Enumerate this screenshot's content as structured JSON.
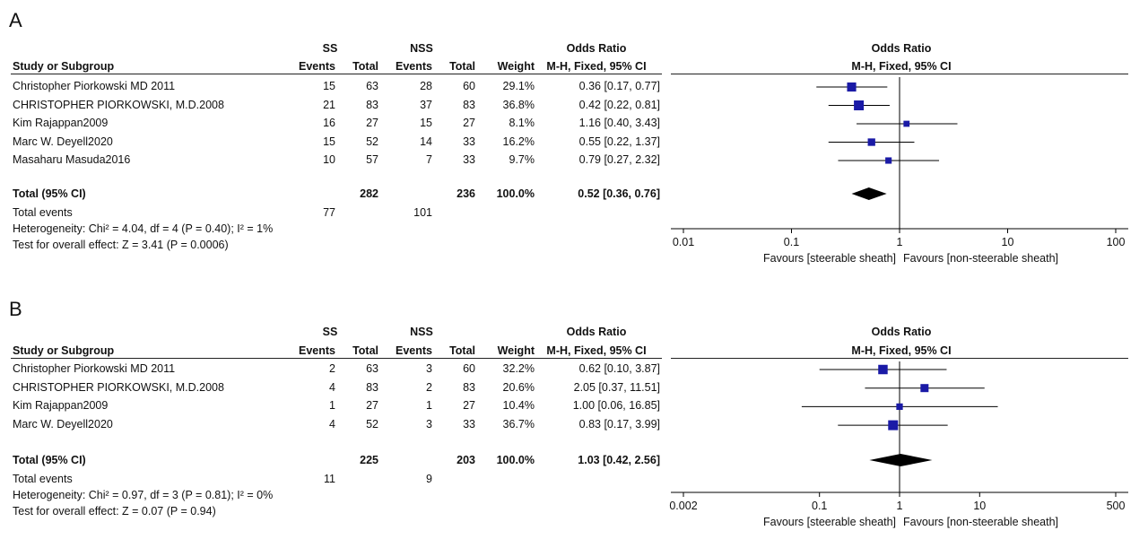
{
  "chart_data": [
    {
      "type": "forest",
      "panel": "A",
      "group1": "SS",
      "group2": "NSS",
      "columns": [
        "Study or Subgroup",
        "Events",
        "Total",
        "Events",
        "Total",
        "Weight",
        "Odds Ratio",
        "M-H, Fixed, 95% CI"
      ],
      "plot_header": [
        "Odds Ratio",
        "M-H, Fixed, 95% CI"
      ],
      "studies": [
        {
          "name": "Christopher Piorkowski MD 2011",
          "e1": "15",
          "n1": "63",
          "e2": "28",
          "n2": "60",
          "weight": "29.1%",
          "ci_text": "0.36 [0.17, 0.77]",
          "or": 0.36,
          "lo": 0.17,
          "hi": 0.77
        },
        {
          "name": "CHRISTOPHER PIORKOWSKI, M.D.2008",
          "e1": "21",
          "n1": "83",
          "e2": "37",
          "n2": "83",
          "weight": "36.8%",
          "ci_text": "0.42 [0.22, 0.81]",
          "or": 0.42,
          "lo": 0.22,
          "hi": 0.81
        },
        {
          "name": "Kim Rajappan2009",
          "e1": "16",
          "n1": "27",
          "e2": "15",
          "n2": "27",
          "weight": "8.1%",
          "ci_text": "1.16 [0.40, 3.43]",
          "or": 1.16,
          "lo": 0.4,
          "hi": 3.43
        },
        {
          "name": "Marc W. Deyell2020",
          "e1": "15",
          "n1": "52",
          "e2": "14",
          "n2": "33",
          "weight": "16.2%",
          "ci_text": "0.55 [0.22, 1.37]",
          "or": 0.55,
          "lo": 0.22,
          "hi": 1.37
        },
        {
          "name": "Masaharu Masuda2016",
          "e1": "10",
          "n1": "57",
          "e2": "7",
          "n2": "33",
          "weight": "9.7%",
          "ci_text": "0.79 [0.27, 2.32]",
          "or": 0.79,
          "lo": 0.27,
          "hi": 2.32
        }
      ],
      "total": {
        "label": "Total (95% CI)",
        "n1": "282",
        "n2": "236",
        "weight": "100.0%",
        "ci_text": "0.52 [0.36, 0.76]",
        "or": 0.52,
        "lo": 0.36,
        "hi": 0.76
      },
      "total_events": {
        "label": "Total events",
        "e1": "77",
        "e2": "101"
      },
      "heterogeneity": "Heterogeneity: Chi² = 4.04, df = 4 (P = 0.40); I² = 1%",
      "overall": "Test for overall effect: Z = 3.41 (P = 0.0006)",
      "axis": {
        "scale": "log",
        "ticks": [
          0.01,
          0.1,
          1,
          10,
          100
        ],
        "tick_labels": [
          "0.01",
          "0.1",
          "1",
          "10",
          "100"
        ],
        "range": [
          0.01,
          100
        ]
      },
      "favours_left": "Favours [steerable sheath]",
      "favours_right": "Favours [non-steerable sheath]"
    },
    {
      "type": "forest",
      "panel": "B",
      "group1": "SS",
      "group2": "NSS",
      "columns": [
        "Study or Subgroup",
        "Events",
        "Total",
        "Events",
        "Total",
        "Weight",
        "Odds Ratio",
        "M-H, Fixed, 95% CI"
      ],
      "plot_header": [
        "Odds Ratio",
        "M-H, Fixed, 95% CI"
      ],
      "studies": [
        {
          "name": "Christopher Piorkowski MD 2011",
          "e1": "2",
          "n1": "63",
          "e2": "3",
          "n2": "60",
          "weight": "32.2%",
          "ci_text": "0.62 [0.10, 3.87]",
          "or": 0.62,
          "lo": 0.1,
          "hi": 3.87
        },
        {
          "name": "CHRISTOPHER PIORKOWSKI, M.D.2008",
          "e1": "4",
          "n1": "83",
          "e2": "2",
          "n2": "83",
          "weight": "20.6%",
          "ci_text": "2.05 [0.37, 11.51]",
          "or": 2.05,
          "lo": 0.37,
          "hi": 11.51
        },
        {
          "name": "Kim Rajappan2009",
          "e1": "1",
          "n1": "27",
          "e2": "1",
          "n2": "27",
          "weight": "10.4%",
          "ci_text": "1.00 [0.06, 16.85]",
          "or": 1.0,
          "lo": 0.06,
          "hi": 16.85
        },
        {
          "name": "Marc W. Deyell2020",
          "e1": "4",
          "n1": "52",
          "e2": "3",
          "n2": "33",
          "weight": "36.7%",
          "ci_text": "0.83 [0.17, 3.99]",
          "or": 0.83,
          "lo": 0.17,
          "hi": 3.99
        }
      ],
      "total": {
        "label": "Total (95% CI)",
        "n1": "225",
        "n2": "203",
        "weight": "100.0%",
        "ci_text": "1.03 [0.42, 2.56]",
        "or": 1.03,
        "lo": 0.42,
        "hi": 2.56
      },
      "total_events": {
        "label": "Total events",
        "e1": "11",
        "e2": "9"
      },
      "heterogeneity": "Heterogeneity: Chi² = 0.97, df = 3 (P = 0.81); I² = 0%",
      "overall": "Test for overall effect: Z = 0.07 (P = 0.94)",
      "axis": {
        "scale": "log",
        "ticks": [
          0.002,
          0.1,
          1,
          10,
          500
        ],
        "tick_labels": [
          "0.002",
          "0.1",
          "1",
          "10",
          "500"
        ],
        "range": [
          0.002,
          500
        ]
      },
      "favours_left": "Favours [steerable sheath]",
      "favours_right": "Favours [non-steerable sheath]"
    }
  ],
  "colors": {
    "marker": "#1a1aa6",
    "line": "#000000",
    "text": "#111111"
  }
}
